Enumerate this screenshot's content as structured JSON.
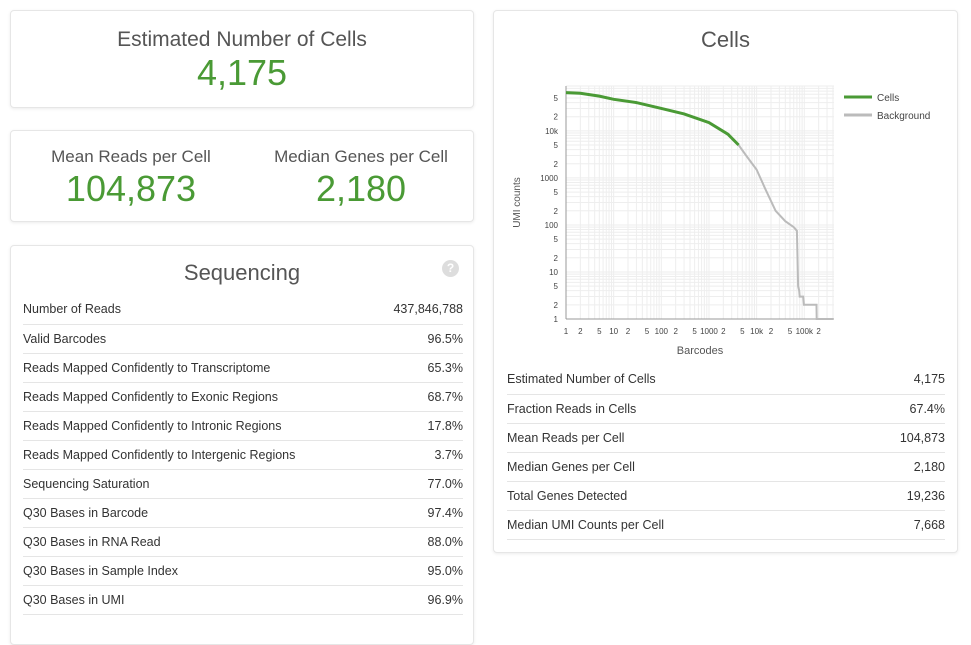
{
  "estimated_cells": {
    "label": "Estimated Number of Cells",
    "value": "4,175"
  },
  "mean_reads": {
    "label": "Mean Reads per Cell",
    "value": "104,873"
  },
  "median_genes": {
    "label": "Median Genes per Cell",
    "value": "2,180"
  },
  "sequencing": {
    "title": "Sequencing",
    "help_icon": "?",
    "rows": [
      {
        "label": "Number of Reads",
        "value": "437,846,788"
      },
      {
        "label": "Valid Barcodes",
        "value": "96.5%"
      },
      {
        "label": "Reads Mapped Confidently to Transcriptome",
        "value": "65.3%"
      },
      {
        "label": "Reads Mapped Confidently to Exonic Regions",
        "value": "68.7%"
      },
      {
        "label": "Reads Mapped Confidently to Intronic Regions",
        "value": "17.8%"
      },
      {
        "label": "Reads Mapped Confidently to Intergenic Regions",
        "value": "3.7%"
      },
      {
        "label": "Sequencing Saturation",
        "value": "77.0%"
      },
      {
        "label": "Q30 Bases in Barcode",
        "value": "97.4%"
      },
      {
        "label": "Q30 Bases in RNA Read",
        "value": "88.0%"
      },
      {
        "label": "Q30 Bases in Sample Index",
        "value": "95.0%"
      },
      {
        "label": "Q30 Bases in UMI",
        "value": "96.9%"
      }
    ]
  },
  "cells": {
    "title": "Cells",
    "rows": [
      {
        "label": "Estimated Number of Cells",
        "value": "4,175"
      },
      {
        "label": "Fraction Reads in Cells",
        "value": "67.4%"
      },
      {
        "label": "Mean Reads per Cell",
        "value": "104,873"
      },
      {
        "label": "Median Genes per Cell",
        "value": "2,180"
      },
      {
        "label": "Total Genes Detected",
        "value": "19,236"
      },
      {
        "label": "Median UMI Counts per Cell",
        "value": "7,668"
      }
    ]
  },
  "chart_data": {
    "type": "line",
    "xlabel": "Barcodes",
    "ylabel": "UMI counts",
    "xscale": "log",
    "yscale": "log",
    "xlim": [
      1,
      420000
    ],
    "ylim": [
      1,
      90000
    ],
    "grid": true,
    "legend_position": "top-right",
    "xticks": [
      "1",
      "2",
      "5",
      "10",
      "2",
      "5",
      "100",
      "2",
      "5",
      "1000",
      "2",
      "5",
      "10k",
      "2",
      "5",
      "100k",
      "2"
    ],
    "yticks": [
      "1",
      "2",
      "5",
      "10",
      "2",
      "5",
      "100",
      "2",
      "5",
      "1000",
      "2",
      "5",
      "10k",
      "2",
      "5"
    ],
    "series": [
      {
        "name": "Cells",
        "color": "#4a9a35",
        "points": [
          [
            1,
            65000
          ],
          [
            2,
            63000
          ],
          [
            5,
            55000
          ],
          [
            10,
            47000
          ],
          [
            30,
            40000
          ],
          [
            100,
            30000
          ],
          [
            300,
            23000
          ],
          [
            1000,
            15000
          ],
          [
            2500,
            8500
          ],
          [
            4175,
            5000
          ]
        ]
      },
      {
        "name": "Background",
        "color": "#bbbbbb",
        "points": [
          [
            4175,
            5000
          ],
          [
            6000,
            3000
          ],
          [
            10000,
            1500
          ],
          [
            15000,
            600
          ],
          [
            25000,
            200
          ],
          [
            40000,
            120
          ],
          [
            60000,
            90
          ],
          [
            70000,
            75
          ],
          [
            72000,
            20
          ],
          [
            74000,
            5
          ],
          [
            78000,
            4
          ],
          [
            80000,
            3
          ],
          [
            95000,
            3
          ],
          [
            98000,
            2
          ],
          [
            180000,
            2
          ],
          [
            182000,
            1
          ],
          [
            400000,
            1
          ]
        ]
      }
    ]
  }
}
